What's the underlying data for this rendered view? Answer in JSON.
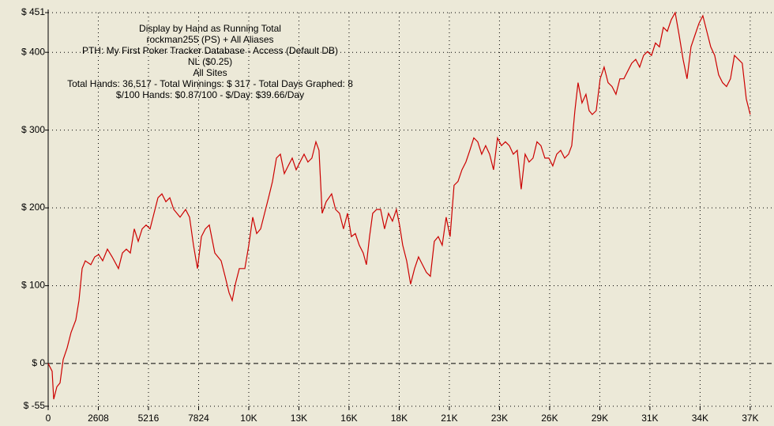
{
  "chart_data": {
    "type": "line",
    "title": "Display by Hand as Running Total",
    "subtitle": [
      "rockman255 (PS) + All Aliases",
      "PTH: My First Poker Tracker Database - Access (Default DB)",
      "NL ($0.25)",
      "All Sites",
      "Total Hands: 36,517 - Total Winnings: $ 317 - Total Days Graphed: 8",
      "$/100 Hands: $0.87/100 - $/Day: $39.66/Day"
    ],
    "color": "#cc0000",
    "grid": true,
    "xlim": [
      0,
      36517
    ],
    "ylim": [
      -55,
      451
    ],
    "xticks": [
      0,
      2608,
      5216,
      7824,
      {
        "value": 10432,
        "label": "10K"
      },
      {
        "value": 13040,
        "label": "13K"
      },
      {
        "value": 15648,
        "label": "16K"
      },
      {
        "value": 18256,
        "label": "18K"
      },
      {
        "value": 20864,
        "label": "21K"
      },
      {
        "value": 23472,
        "label": "23K"
      },
      {
        "value": 26080,
        "label": "26K"
      },
      {
        "value": 28688,
        "label": "29K"
      },
      {
        "value": 31296,
        "label": "31K"
      },
      {
        "value": 33904,
        "label": "34K"
      },
      {
        "value": 36512,
        "label": "37K"
      }
    ],
    "yticks": [
      {
        "value": 451,
        "label": "$ 451"
      },
      {
        "value": 400,
        "label": "$ 400"
      },
      {
        "value": 300,
        "label": "$ 300"
      },
      {
        "value": 200,
        "label": "$ 200"
      },
      {
        "value": 100,
        "label": "$ 100"
      },
      {
        "value": 0,
        "label": "$ 0"
      },
      {
        "value": -55,
        "label": "$ -55"
      }
    ],
    "x": [
      0,
      205,
      287,
      452,
      616,
      780,
      986,
      1191,
      1437,
      1602,
      1766,
      1930,
      2218,
      2423,
      2628,
      2834,
      3080,
      3326,
      3655,
      3860,
      4066,
      4271,
      4476,
      4682,
      4887,
      5093,
      5298,
      5503,
      5709,
      5914,
      6119,
      6325,
      6530,
      6859,
      7146,
      7352,
      7557,
      7762,
      7968,
      8173,
      8379,
      8666,
      8995,
      9200,
      9405,
      9570,
      9734,
      9939,
      10227,
      10432,
      10638,
      10843,
      11048,
      11254,
      11459,
      11664,
      11870,
      12075,
      12280,
      12485,
      12691,
      12896,
      13101,
      13307,
      13512,
      13717,
      13923,
      14087,
      14251,
      14457,
      14744,
      14949,
      15155,
      15360,
      15566,
      15771,
      15976,
      16182,
      16387,
      16551,
      16715,
      16880,
      17085,
      17290,
      17496,
      17701,
      17907,
      18112,
      18276,
      18440,
      18646,
      18851,
      19056,
      19262,
      19467,
      19672,
      19878,
      20083,
      20289,
      20494,
      20699,
      20905,
      21110,
      21315,
      21521,
      21726,
      21931,
      22137,
      22342,
      22547,
      22753,
      22958,
      23163,
      23369,
      23574,
      23780,
      23985,
      24190,
      24396,
      24601,
      24806,
      25012,
      25217,
      25422,
      25628,
      25833,
      26038,
      26244,
      26449,
      26654,
      26860,
      27065,
      27229,
      27394,
      27558,
      27763,
      27969,
      28133,
      28297,
      28503,
      28708,
      28913,
      29119,
      29324,
      29529,
      29735,
      29940,
      30145,
      30351,
      30556,
      30761,
      30967,
      31172,
      31377,
      31583,
      31788,
      31994,
      32199,
      32404,
      32610,
      32815,
      33020,
      33226,
      33431,
      33636,
      33842,
      34047,
      34252,
      34458,
      34663,
      34868,
      35074,
      35279,
      35484,
      35690,
      35895,
      36100,
      36306,
      36511
    ],
    "values": [
      0,
      -10,
      -46,
      -30,
      -25,
      5,
      20,
      40,
      56,
      81,
      122,
      132,
      127,
      137,
      140,
      132,
      147,
      137,
      122,
      142,
      147,
      142,
      173,
      157,
      173,
      178,
      173,
      193,
      213,
      218,
      208,
      213,
      198,
      188,
      198,
      188,
      152,
      122,
      163,
      173,
      178,
      142,
      132,
      112,
      91,
      81,
      102,
      122,
      122,
      152,
      188,
      167,
      173,
      193,
      213,
      234,
      264,
      269,
      244,
      254,
      264,
      249,
      259,
      269,
      259,
      264,
      285,
      274,
      193,
      208,
      218,
      198,
      193,
      173,
      193,
      163,
      167,
      152,
      142,
      127,
      163,
      193,
      198,
      198,
      173,
      193,
      183,
      198,
      178,
      152,
      132,
      102,
      122,
      137,
      127,
      117,
      112,
      157,
      163,
      152,
      188,
      163,
      229,
      234,
      249,
      259,
      274,
      290,
      285,
      269,
      280,
      269,
      249,
      290,
      280,
      285,
      280,
      269,
      274,
      224,
      269,
      259,
      264,
      285,
      280,
      264,
      264,
      254,
      269,
      274,
      264,
      269,
      280,
      325,
      361,
      335,
      346,
      325,
      320,
      325,
      366,
      381,
      361,
      356,
      346,
      366,
      366,
      376,
      386,
      391,
      381,
      396,
      401,
      396,
      412,
      407,
      432,
      427,
      442,
      451,
      422,
      391,
      366,
      407,
      422,
      437,
      447,
      427,
      407,
      396,
      371,
      361,
      356,
      366,
      396,
      391,
      386,
      340,
      320
    ]
  }
}
